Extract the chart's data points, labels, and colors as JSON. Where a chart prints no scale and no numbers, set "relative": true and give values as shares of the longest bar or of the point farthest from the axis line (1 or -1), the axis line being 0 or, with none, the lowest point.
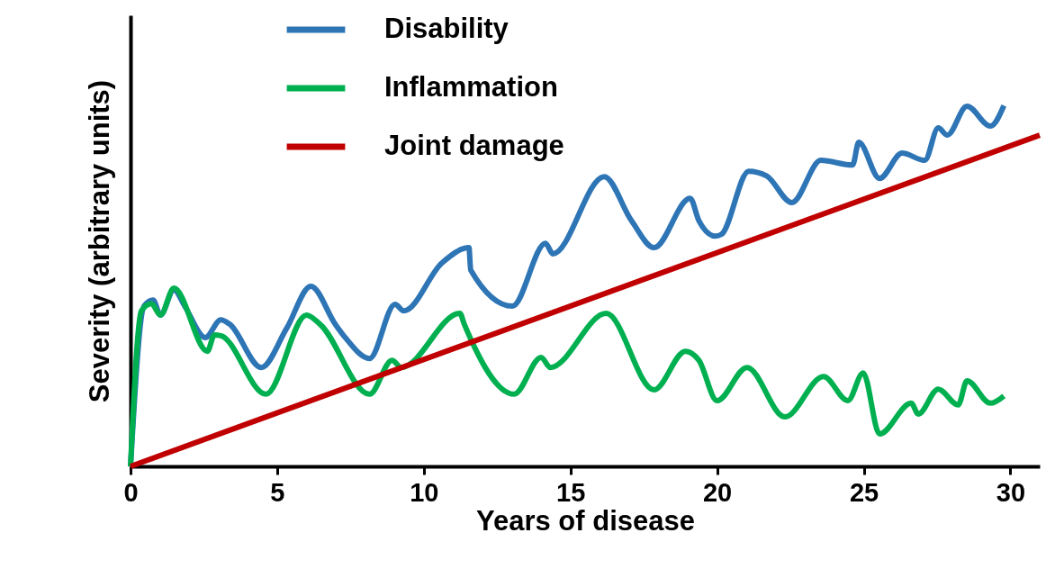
{
  "chart_data": {
    "type": "line",
    "xlabel": "Years of disease",
    "ylabel": "Severity (arbitrary units)",
    "relative": true,
    "xlim": [
      0,
      31
    ],
    "xticks": [
      0,
      5,
      10,
      15,
      20,
      25,
      30
    ],
    "legend": "top",
    "grid": false,
    "marker": "none",
    "line_style": "solid",
    "series": [
      {
        "name": "Disability",
        "color": "#2e75b6",
        "x": [
          0,
          0.46,
          0.77,
          1.02,
          1.48,
          1.85,
          2.55,
          3.08,
          3.38,
          4.46,
          5.32,
          6.15,
          6.98,
          7.32,
          8.15,
          9.02,
          9.32,
          10.62,
          11.54,
          11.6,
          13.02,
          14.15,
          14.4,
          16.15,
          17.08,
          17.85,
          19.08,
          19.38,
          19.94,
          20.15,
          21.08,
          21.69,
          22.55,
          23.54,
          24.62,
          24.83,
          25.54,
          26.31,
          27.08,
          27.54,
          27.85,
          28.52,
          29.32,
          29.78
        ],
        "values": [
          0,
          0.444,
          0.461,
          0.419,
          0.489,
          0.444,
          0.357,
          0.406,
          0.394,
          0.274,
          0.382,
          0.499,
          0.394,
          0.357,
          0.299,
          0.449,
          0.431,
          0.564,
          0.606,
          0.544,
          0.444,
          0.618,
          0.589,
          0.803,
          0.681,
          0.606,
          0.743,
          0.681,
          0.638,
          0.643,
          0.818,
          0.805,
          0.731,
          0.848,
          0.835,
          0.898,
          0.798,
          0.868,
          0.848,
          0.938,
          0.918,
          0.998,
          0.943,
          1
        ]
      },
      {
        "name": "Inflammation",
        "color": "#00b050",
        "x": [
          0,
          0.37,
          0.71,
          1.02,
          1.48,
          2.62,
          2.86,
          3.08,
          4.62,
          6.0,
          6.46,
          8.15,
          8.92,
          9.23,
          11.23,
          11.38,
          13.08,
          14.0,
          14.31,
          16.22,
          17.85,
          18.92,
          19.38,
          20.0,
          21.02,
          22.31,
          23.63,
          24.46,
          24.98,
          25.54,
          26.62,
          26.86,
          27.54,
          28.22,
          28.52,
          29.32,
          29.78
        ],
        "values": [
          0,
          0.431,
          0.451,
          0.419,
          0.494,
          0.319,
          0.364,
          0.362,
          0.2,
          0.419,
          0.394,
          0.2,
          0.294,
          0.274,
          0.424,
          0.394,
          0.2,
          0.302,
          0.274,
          0.424,
          0.212,
          0.319,
          0.294,
          0.182,
          0.274,
          0.137,
          0.249,
          0.182,
          0.259,
          0.09,
          0.175,
          0.145,
          0.214,
          0.17,
          0.237,
          0.175,
          0.195
        ]
      },
      {
        "name": "Joint damage",
        "color": "#c00000",
        "x": [
          0,
          31
        ],
        "values": [
          0,
          0.918
        ]
      }
    ]
  }
}
